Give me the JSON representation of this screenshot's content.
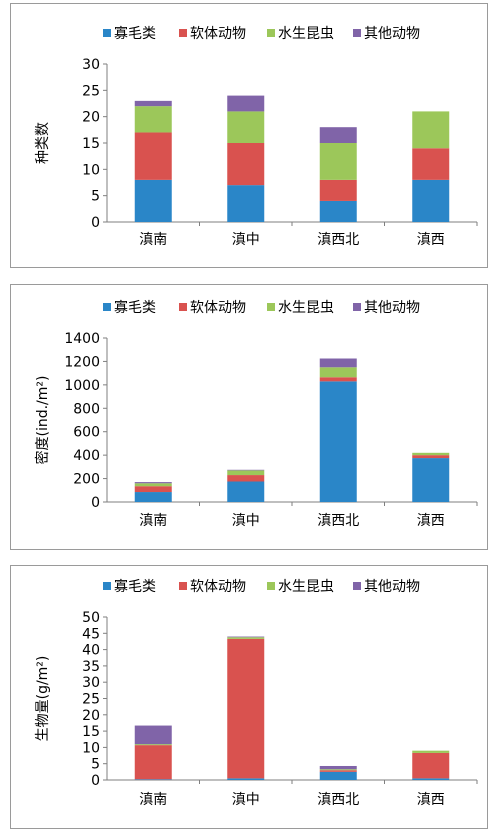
{
  "chart_data": [
    {
      "type": "bar",
      "stacked": true,
      "ylabel": "种类数",
      "ylim": [
        0,
        30
      ],
      "yticks": [
        0,
        5,
        10,
        15,
        20,
        25,
        30
      ],
      "categories": [
        "滇南",
        "滇中",
        "滇西北",
        "滇西"
      ],
      "legend_position": "top",
      "series": [
        {
          "name": "寡毛类",
          "color": "#2a86c8",
          "values": [
            8,
            7,
            4,
            8
          ]
        },
        {
          "name": "软体动物",
          "color": "#d9524f",
          "values": [
            9,
            8,
            4,
            6
          ]
        },
        {
          "name": "水生昆虫",
          "color": "#9cc75a",
          "values": [
            5,
            6,
            7,
            7
          ]
        },
        {
          "name": "其他动物",
          "color": "#8064a8",
          "values": [
            1,
            3,
            3,
            0
          ]
        }
      ]
    },
    {
      "type": "bar",
      "stacked": true,
      "ylabel": "密度(ind./m²)",
      "ylim": [
        0,
        1400
      ],
      "yticks": [
        0,
        200,
        400,
        600,
        800,
        1000,
        1200,
        1400
      ],
      "categories": [
        "滇南",
        "滇中",
        "滇西北",
        "滇西"
      ],
      "legend_position": "top",
      "series": [
        {
          "name": "寡毛类",
          "color": "#2a86c8",
          "values": [
            85,
            175,
            1030,
            375
          ]
        },
        {
          "name": "软体动物",
          "color": "#d9524f",
          "values": [
            50,
            55,
            35,
            25
          ]
        },
        {
          "name": "水生昆虫",
          "color": "#9cc75a",
          "values": [
            25,
            40,
            85,
            20
          ]
        },
        {
          "name": "其他动物",
          "color": "#8064a8",
          "values": [
            10,
            5,
            75,
            0
          ]
        }
      ]
    },
    {
      "type": "bar",
      "stacked": true,
      "ylabel": "生物量(g/m²)",
      "ylim": [
        0,
        50
      ],
      "yticks": [
        0,
        5,
        10,
        15,
        20,
        25,
        30,
        35,
        40,
        45,
        50
      ],
      "categories": [
        "滇南",
        "滇中",
        "滇西北",
        "滇西"
      ],
      "legend_position": "top",
      "series": [
        {
          "name": "寡毛类",
          "color": "#2a86c8",
          "values": [
            0.2,
            0.5,
            2.5,
            0.5
          ]
        },
        {
          "name": "软体动物",
          "color": "#d9524f",
          "values": [
            10.5,
            42.8,
            0.5,
            7.8
          ]
        },
        {
          "name": "水生昆虫",
          "color": "#9cc75a",
          "values": [
            0.3,
            0.5,
            0.3,
            0.7
          ]
        },
        {
          "name": "其他动物",
          "color": "#8064a8",
          "values": [
            5.7,
            0.2,
            1.0,
            0
          ]
        }
      ]
    }
  ]
}
